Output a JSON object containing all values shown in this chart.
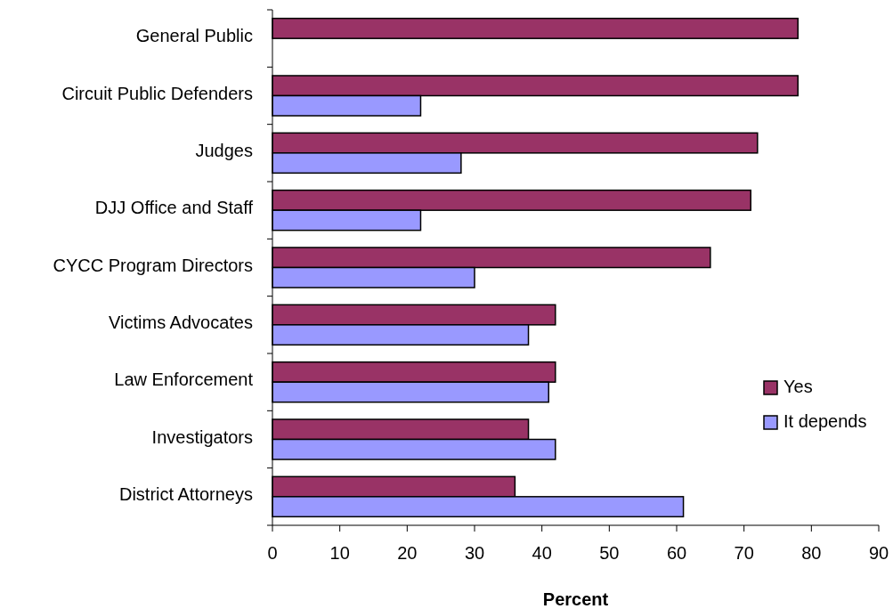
{
  "chart_data": {
    "type": "bar",
    "orientation": "horizontal",
    "xlabel": "Percent",
    "categories": [
      "General Public",
      "Circuit Public Defenders",
      "Judges",
      "DJJ Office and Staff",
      "CYCC Program Directors",
      "Victims Advocates",
      "Law Enforcement",
      "Investigators",
      "District Attorneys"
    ],
    "series": [
      {
        "name": "Yes",
        "color": "#993366",
        "values": [
          78,
          78,
          72,
          71,
          65,
          42,
          42,
          38,
          36
        ]
      },
      {
        "name": "It depends",
        "color": "#9999ff",
        "values": [
          null,
          22,
          28,
          22,
          30,
          38,
          41,
          42,
          61
        ]
      }
    ],
    "xlim": [
      0,
      90
    ],
    "xticks": [
      0,
      10,
      20,
      30,
      40,
      50,
      60,
      70,
      80,
      90
    ],
    "grid": false,
    "legend": "right"
  }
}
